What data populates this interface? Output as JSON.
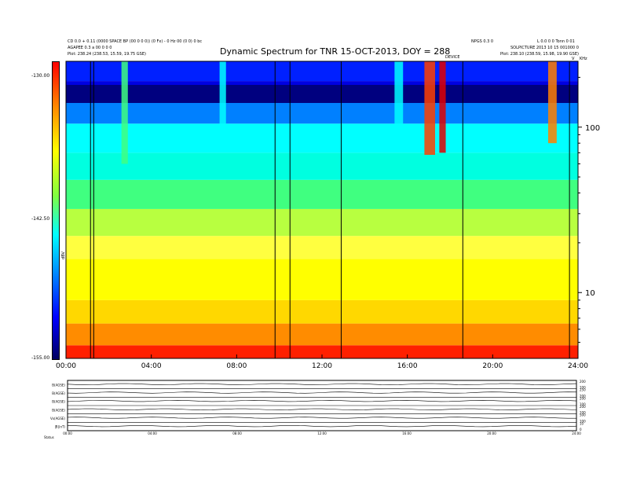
{
  "header": {
    "title": "Dynamic Spectrum for TNR 15-OCT-2013, DOY = 288",
    "left_line1": "CD 0.0 + 0.11 (0000 SPACE BP (00 0 0 0)) (0 Fx) - 0 Hz 00 (0 0) 0 bc",
    "left_line2": "AGAPEE 0.3 a 00 0 0 0",
    "left_line3": "Plot:   238.24 (238.53, 15.59, 19.75 GSE)",
    "right_line1": "NPGS 0.3 0",
    "right_line2": "L 0.0 0 0 Tonn 0 01",
    "right_line3": "SOLPICTURE 2013 10 15 001000 0",
    "right_line4": "Plot:   238.10 (238.59, 15.98, 19.90 GSE)",
    "marker_label": "DEVICE",
    "corner_label": "V",
    "corner_label2": "KHz"
  },
  "colorbar": {
    "ticks": [
      "-130.00",
      "-142.50",
      "-155.00"
    ],
    "unit_label": "dBV",
    "colors": [
      "#ff0000",
      "#ff8000",
      "#ffff00",
      "#00ff80",
      "#00ffff",
      "#0080ff",
      "#0000ff",
      "#000080"
    ]
  },
  "chart_data": {
    "type": "heatmap",
    "title": "Dynamic Spectrum for TNR 15-OCT-2013, DOY = 288",
    "x_ticks": [
      "00:00",
      "04:00",
      "08:00",
      "12:00",
      "16:00",
      "20:00",
      "24:00"
    ],
    "x_range_hours": [
      0,
      24
    ],
    "y_scale": "log",
    "y_ticks": [
      100,
      10
    ],
    "y_range_khz": [
      4,
      250
    ],
    "colorbar_range": [
      -155,
      -130
    ],
    "colorbar_ticks": [
      -130.0,
      -142.5,
      -155.0
    ],
    "bands": [
      {
        "from": 4,
        "to": 4.8,
        "color": "#ff2000"
      },
      {
        "from": 4.8,
        "to": 6.5,
        "color": "#ff8c00"
      },
      {
        "from": 6.5,
        "to": 9,
        "color": "#ffd800"
      },
      {
        "from": 9,
        "to": 16,
        "color": "#ffff00"
      },
      {
        "from": 16,
        "to": 22,
        "color": "#ffff40"
      },
      {
        "from": 22,
        "to": 32,
        "color": "#b8ff40"
      },
      {
        "from": 32,
        "to": 48,
        "color": "#40ff80"
      },
      {
        "from": 48,
        "to": 70,
        "color": "#00ffe0"
      },
      {
        "from": 70,
        "to": 105,
        "color": "#00ffff"
      },
      {
        "from": 105,
        "to": 140,
        "color": "#0080ff"
      },
      {
        "from": 140,
        "to": 190,
        "color": "#0000e0"
      },
      {
        "from": 190,
        "to": 250,
        "color": "#0020ff"
      }
    ],
    "bursts": [
      {
        "t": 16.8,
        "w": 0.5,
        "f_low": 68,
        "f_high": 250,
        "color": "#ff4000"
      },
      {
        "t": 17.5,
        "w": 0.3,
        "f_low": 70,
        "f_high": 250,
        "color": "#e00000"
      },
      {
        "t": 22.6,
        "w": 0.4,
        "f_low": 80,
        "f_high": 250,
        "color": "#ff8000"
      },
      {
        "t": 2.6,
        "w": 0.3,
        "f_low": 60,
        "f_high": 250,
        "color": "#40ff80"
      },
      {
        "t": 7.2,
        "w": 0.3,
        "f_low": 80,
        "f_high": 250,
        "color": "#00ffff"
      },
      {
        "t": 15.4,
        "w": 0.4,
        "f_low": 75,
        "f_high": 250,
        "color": "#00ffff"
      }
    ],
    "vertical_lines_hours": [
      1.15,
      1.3,
      9.8,
      10.5,
      12.9,
      18.6,
      23.6
    ],
    "panels": [
      {
        "label": "B(AGSE)",
        "ticks_right": [
          "200",
          "100"
        ]
      },
      {
        "label": "B(AGSE)",
        "ticks_right": [
          "250",
          "200"
        ]
      },
      {
        "label": "B(AGSE)",
        "ticks_right": [
          "200",
          "100"
        ]
      },
      {
        "label": "B(AGSE)",
        "ticks_right": [
          "200",
          "100"
        ]
      },
      {
        "label": "Vx(AGSE)",
        "ticks_right": [
          "500",
          "100"
        ]
      },
      {
        "label": "|B|(nT)",
        "ticks_right": [
          "10",
          "0"
        ]
      }
    ],
    "bottom_ticks": [
      "00:00",
      "04:00",
      "08:00",
      "12:00",
      "16:00",
      "20:00",
      "24:00"
    ],
    "bottom_label": "Status"
  }
}
